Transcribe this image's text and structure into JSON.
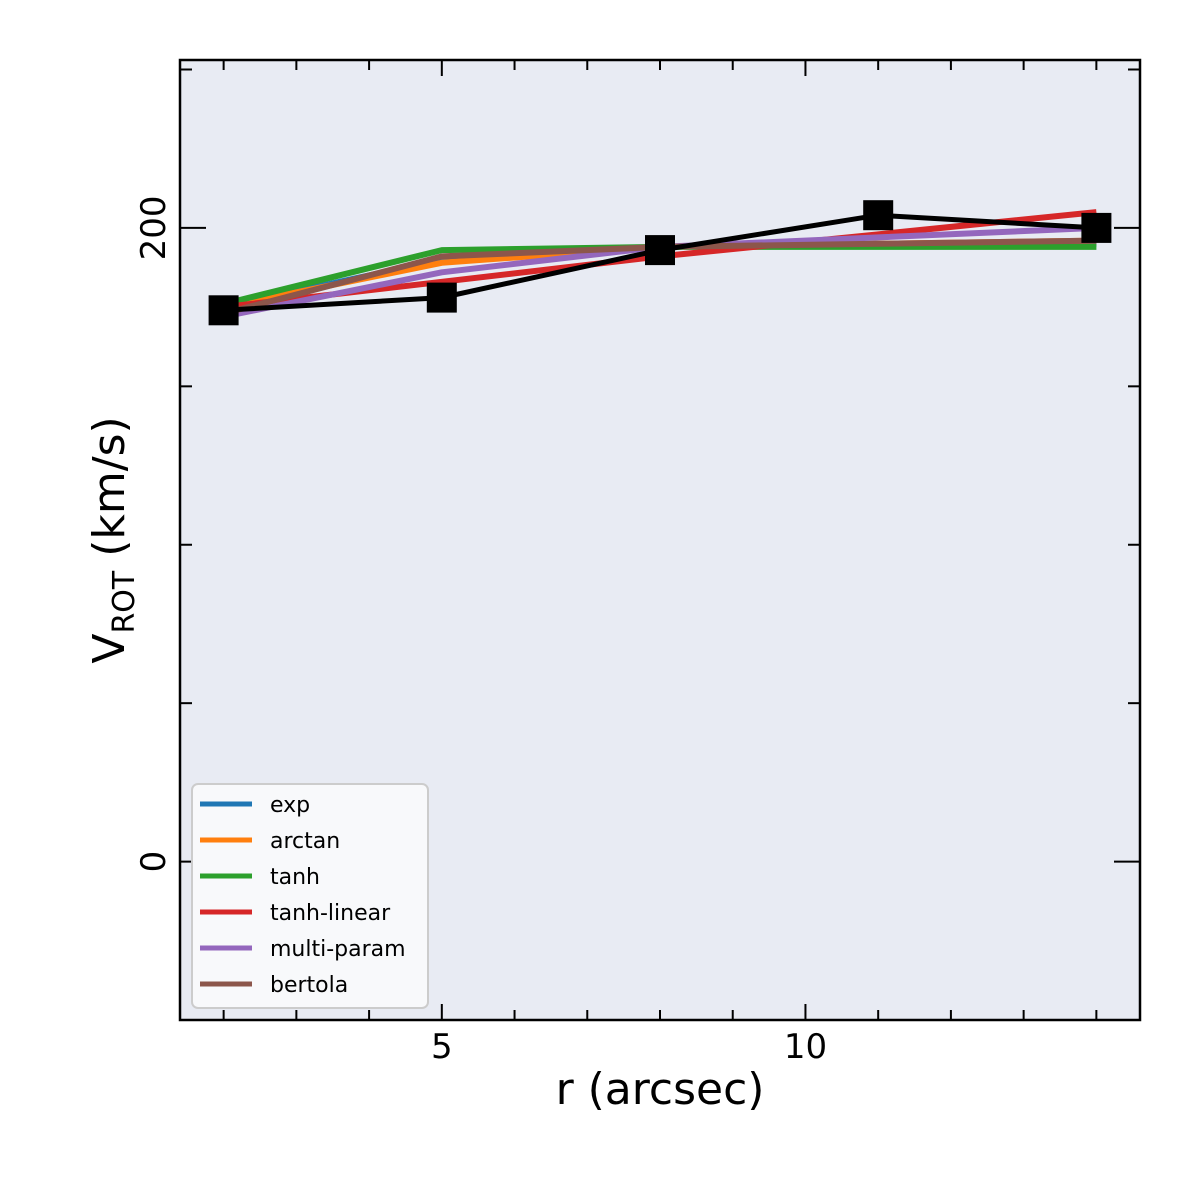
{
  "chart_data": {
    "type": "line",
    "xlabel": "r (arcsec)",
    "ylabel": {
      "main": "V",
      "sub": "ROT",
      "rest": " (km/s)"
    },
    "xlim": [
      1.4,
      14.6
    ],
    "ylim": [
      -50,
      253
    ],
    "xticks_major": [
      5,
      10
    ],
    "xtick_labels": [
      "5",
      "10"
    ],
    "xticks_minor": [
      2,
      3,
      4,
      6,
      7,
      8,
      9,
      11,
      12,
      13,
      14
    ],
    "yticks_major": [
      0,
      200
    ],
    "ytick_labels": [
      "0",
      "200"
    ],
    "yticks_minor": [
      50,
      100,
      150,
      250
    ],
    "grid": false,
    "background": "#e8ebf3",
    "legend_position": "lower-left",
    "x": [
      2,
      5,
      8,
      11,
      14
    ],
    "series": [
      {
        "name": "exp",
        "color": "#1f77b4",
        "values": [
          175,
          190,
          194,
          195,
          195
        ]
      },
      {
        "name": "arctan",
        "color": "#ff7f0e",
        "values": [
          175,
          189,
          194,
          195,
          196
        ]
      },
      {
        "name": "tanh",
        "color": "#2ca02c",
        "values": [
          176,
          193,
          194,
          194,
          194
        ]
      },
      {
        "name": "tanh-linear",
        "color": "#d62728",
        "values": [
          175,
          183,
          191,
          198,
          205
        ]
      },
      {
        "name": "multi-param",
        "color": "#9467bd",
        "values": [
          172,
          186,
          194,
          197,
          200
        ]
      },
      {
        "name": "bertola",
        "color": "#8c564b",
        "values": [
          173,
          191,
          194,
          195,
          196
        ]
      }
    ],
    "observed": {
      "color": "#000000",
      "marker": "square",
      "values": [
        174,
        178,
        193,
        204,
        200
      ]
    }
  }
}
